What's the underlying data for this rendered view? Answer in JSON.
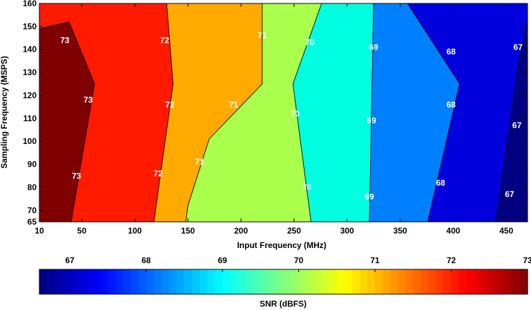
{
  "chart_data": {
    "type": "contour",
    "xlabel": "Input Frequency (MHz)",
    "ylabel": "Sampling Frequency (MSPS)",
    "xlim": [
      10,
      470
    ],
    "ylim": [
      65,
      160
    ],
    "x_ticks": [
      10,
      50,
      100,
      150,
      200,
      250,
      300,
      350,
      400,
      450
    ],
    "y_ticks": [
      65,
      70,
      80,
      90,
      100,
      110,
      120,
      130,
      140,
      150,
      160
    ],
    "levels": [
      67,
      68,
      69,
      70,
      71,
      72,
      73
    ],
    "regions": [
      {
        "level": 73,
        "color": "#7f0000",
        "boundary": [
          [
            10,
            65
          ],
          [
            10,
            149
          ],
          [
            38,
            152
          ],
          [
            62,
            125
          ],
          [
            40,
            65
          ]
        ]
      },
      {
        "level": 72,
        "color": "#ff1a00",
        "boundary": [
          [
            10,
            149
          ],
          [
            10,
            160
          ],
          [
            130,
            160
          ],
          [
            136,
            125
          ],
          [
            118,
            65
          ],
          [
            40,
            65
          ],
          [
            62,
            125
          ],
          [
            38,
            152
          ]
        ]
      },
      {
        "level": 71,
        "color": "#ffaa00",
        "boundary": [
          [
            130,
            160
          ],
          [
            220,
            160
          ],
          [
            220,
            125
          ],
          [
            170,
            101
          ],
          [
            150,
            72
          ],
          [
            148,
            65
          ],
          [
            118,
            65
          ],
          [
            136,
            125
          ]
        ]
      },
      {
        "level": 70,
        "color": "#aaff4d",
        "boundary": [
          [
            220,
            160
          ],
          [
            276,
            160
          ],
          [
            249,
            125
          ],
          [
            266,
            65
          ],
          [
            148,
            65
          ],
          [
            150,
            72
          ],
          [
            170,
            101
          ],
          [
            220,
            125
          ]
        ]
      },
      {
        "level": 69,
        "color": "#00ffe0",
        "boundary": [
          [
            276,
            160
          ],
          [
            325,
            160
          ],
          [
            321,
            65
          ],
          [
            266,
            65
          ],
          [
            249,
            125
          ]
        ]
      },
      {
        "level": 68,
        "color": "#0080ff",
        "boundary": [
          [
            325,
            160
          ],
          [
            357,
            160
          ],
          [
            406,
            125
          ],
          [
            376,
            65
          ],
          [
            321,
            65
          ]
        ]
      },
      {
        "level": 67,
        "color": "#0000dd",
        "boundary": [
          [
            357,
            160
          ],
          [
            470,
            160
          ],
          [
            470,
            152
          ],
          [
            440,
            65
          ],
          [
            376,
            65
          ],
          [
            406,
            125
          ]
        ]
      },
      {
        "level": 66.6,
        "color": "#000080",
        "boundary": [
          [
            470,
            152
          ],
          [
            470,
            65
          ],
          [
            440,
            65
          ],
          [
            462,
            135
          ]
        ]
      }
    ],
    "contour_labels": [
      {
        "text": "73",
        "x": 34,
        "y": 144
      },
      {
        "text": "73",
        "x": 56,
        "y": 118
      },
      {
        "text": "73",
        "x": 45,
        "y": 85
      },
      {
        "text": "72",
        "x": 128,
        "y": 144
      },
      {
        "text": "72",
        "x": 133,
        "y": 116
      },
      {
        "text": "72",
        "x": 122,
        "y": 86
      },
      {
        "text": "71",
        "x": 220,
        "y": 146
      },
      {
        "text": "71",
        "x": 193,
        "y": 116
      },
      {
        "text": "71",
        "x": 161,
        "y": 91
      },
      {
        "text": "70",
        "x": 265,
        "y": 143
      },
      {
        "text": "70",
        "x": 251,
        "y": 112
      },
      {
        "text": "70",
        "x": 262,
        "y": 80
      },
      {
        "text": "69",
        "x": 325,
        "y": 141
      },
      {
        "text": "69",
        "x": 323,
        "y": 109
      },
      {
        "text": "69",
        "x": 321,
        "y": 76
      },
      {
        "text": "68",
        "x": 398,
        "y": 139
      },
      {
        "text": "68",
        "x": 398,
        "y": 116
      },
      {
        "text": "68",
        "x": 388,
        "y": 82
      },
      {
        "text": "67",
        "x": 461,
        "y": 141
      },
      {
        "text": "67",
        "x": 460,
        "y": 107
      },
      {
        "text": "67",
        "x": 453,
        "y": 77
      }
    ],
    "colorbar": {
      "label": "SNR (dBFS)",
      "ticks": [
        "67",
        "68",
        "69",
        "70",
        "71",
        "72",
        "73"
      ],
      "range": [
        66.6,
        73
      ],
      "steps": 64
    }
  }
}
